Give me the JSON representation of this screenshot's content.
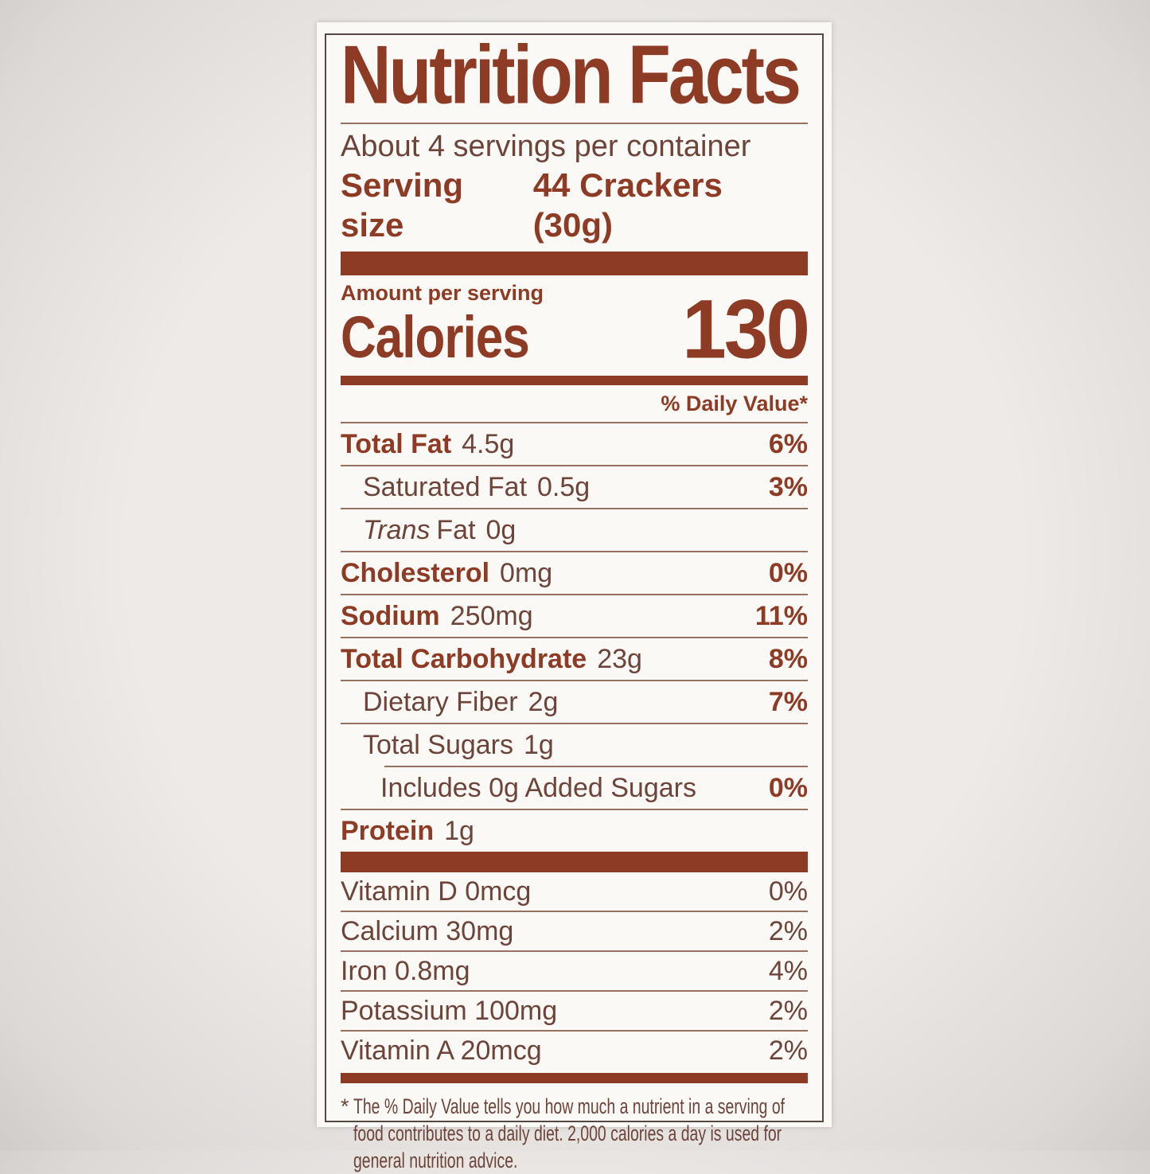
{
  "colors": {
    "brand_brown": "#8e3b25",
    "body_text": "#6d443a",
    "hairline": "#977160",
    "label_background": "#fbf9f5",
    "page_background": "#e9e6e4",
    "outer_border": "#564842"
  },
  "label": {
    "title": "Nutrition Facts",
    "servings_per_container": "About 4 servings per container",
    "serving_size_label": "Serving size",
    "serving_size_value": "44 Crackers (30g)",
    "amount_per_serving_label": "Amount per serving",
    "calories_label": "Calories",
    "calories_value": "130",
    "daily_value_header": "% Daily Value*",
    "nutrients": [
      {
        "name": "Total Fat",
        "amount": "4.5g",
        "dv": "6%"
      },
      {
        "name": "Saturated Fat",
        "amount": "0.5g",
        "dv": "3%"
      },
      {
        "name_italic": "Trans",
        "name": "Fat",
        "amount": "0g",
        "dv": ""
      },
      {
        "name": "Cholesterol",
        "amount": "0mg",
        "dv": "0%"
      },
      {
        "name": "Sodium",
        "amount": "250mg",
        "dv": "11%"
      },
      {
        "name": "Total Carbohydrate",
        "amount": "23g",
        "dv": "8%"
      },
      {
        "name": "Dietary Fiber",
        "amount": "2g",
        "dv": "7%"
      },
      {
        "name": "Total Sugars",
        "amount": "1g",
        "dv": ""
      },
      {
        "name": "Includes 0g Added Sugars",
        "amount": "",
        "dv": "0%"
      },
      {
        "name": "Protein",
        "amount": "1g",
        "dv": ""
      }
    ],
    "vitamins": [
      {
        "name": "Vitamin D 0mcg",
        "dv": "0%"
      },
      {
        "name": "Calcium 30mg",
        "dv": "2%"
      },
      {
        "name": "Iron 0.8mg",
        "dv": "4%"
      },
      {
        "name": "Potassium 100mg",
        "dv": "2%"
      },
      {
        "name": "Vitamin A 20mcg",
        "dv": "2%"
      }
    ],
    "footnote": {
      "asterisk": "*",
      "line1": "The % Daily Value tells you how much a nutrient in a serving of",
      "line2": "food contributes to a daily diet. 2,000 calories a day is used for",
      "line3": "general nutrition advice."
    }
  }
}
